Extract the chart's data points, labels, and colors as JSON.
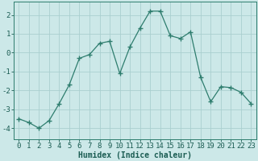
{
  "x": [
    0,
    1,
    2,
    3,
    4,
    5,
    6,
    7,
    8,
    9,
    10,
    11,
    12,
    13,
    14,
    15,
    16,
    17,
    18,
    19,
    20,
    21,
    22,
    23
  ],
  "y": [
    -3.5,
    -3.7,
    -4.0,
    -3.6,
    -2.7,
    -1.7,
    -0.3,
    -0.1,
    0.5,
    0.6,
    -1.1,
    0.3,
    1.3,
    2.2,
    2.2,
    0.9,
    0.75,
    1.1,
    -1.3,
    -2.6,
    -1.8,
    -1.85,
    -2.1,
    -2.7
  ],
  "line_color": "#2e7d6e",
  "marker": "+",
  "marker_color": "#2e7d6e",
  "bg_color": "#cce8e8",
  "grid_color": "#aacfcf",
  "axis_color": "#2e7d6e",
  "tick_color": "#1a5c52",
  "xlabel": "Humidex (Indice chaleur)",
  "xlim": [
    -0.5,
    23.5
  ],
  "ylim": [
    -4.6,
    2.7
  ],
  "yticks": [
    -4,
    -3,
    -2,
    -1,
    0,
    1,
    2
  ],
  "xticks": [
    0,
    1,
    2,
    3,
    4,
    5,
    6,
    7,
    8,
    9,
    10,
    11,
    12,
    13,
    14,
    15,
    16,
    17,
    18,
    19,
    20,
    21,
    22,
    23
  ],
  "xlabel_fontsize": 7.0,
  "tick_fontsize": 6.5
}
